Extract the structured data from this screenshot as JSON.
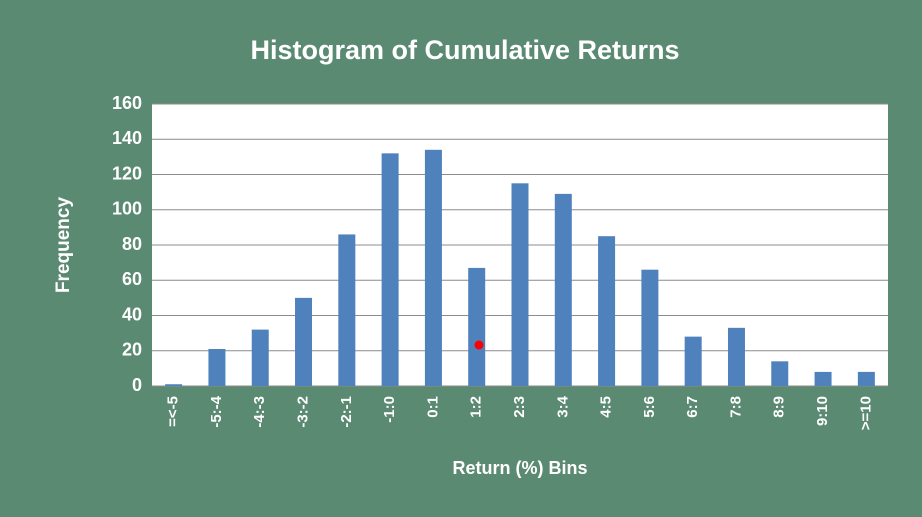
{
  "chart_data": {
    "type": "bar",
    "title": "Histogram of Cumulative Returns",
    "x_label": "Return (%) Bins",
    "y_label": "Frequency",
    "categories": [
      "=<-5",
      "-5:-4",
      "-4:-3",
      "-3:-2",
      "-2:-1",
      "-1:0",
      "0:1",
      "1:2",
      "2:3",
      "3:4",
      "4:5",
      "5:6",
      "6:7",
      "7:8",
      "8:9",
      "9:10",
      ">=10"
    ],
    "values": [
      1,
      21,
      32,
      50,
      86,
      132,
      134,
      67,
      115,
      109,
      85,
      66,
      28,
      33,
      14,
      8,
      8
    ],
    "color": "#4f81bd",
    "ylim": [
      0,
      160
    ],
    "yticks": [
      0,
      20,
      40,
      60,
      80,
      100,
      120,
      140,
      160
    ],
    "grid": true
  }
}
